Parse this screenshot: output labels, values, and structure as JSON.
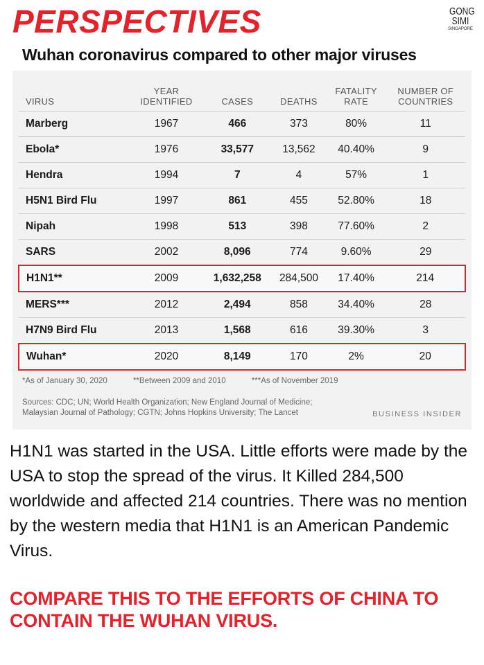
{
  "header": {
    "title": "PERSPECTIVES",
    "logo_line1": "GONG",
    "logo_line2": "SIMI",
    "logo_line3": "SINGAPORE"
  },
  "chart": {
    "subtitle": "Wuhan coronavirus compared to other major viruses",
    "notes": [
      "*As of January 30, 2020",
      "**Between 2009 and 2010",
      "***As of November 2019"
    ],
    "sources": "Sources: CDC; UN; World Health Organization; New England Journal of Medicine; Malaysian Journal of Pathology; CGTN; Johns Hopkins University; The Lancet",
    "credit": "BUSINESS INSIDER"
  },
  "chart_data": {
    "type": "table",
    "columns": [
      "VIRUS",
      "YEAR IDENTIFIED",
      "CASES",
      "DEATHS",
      "FATALITY RATE",
      "NUMBER OF COUNTRIES"
    ],
    "rows": [
      [
        "Marberg",
        "1967",
        "466",
        "373",
        "80%",
        "11"
      ],
      [
        "Ebola*",
        "1976",
        "33,577",
        "13,562",
        "40.40%",
        "9"
      ],
      [
        "Hendra",
        "1994",
        "7",
        "4",
        "57%",
        "1"
      ],
      [
        "H5N1 Bird Flu",
        "1997",
        "861",
        "455",
        "52.80%",
        "18"
      ],
      [
        "Nipah",
        "1998",
        "513",
        "398",
        "77.60%",
        "2"
      ],
      [
        "SARS",
        "2002",
        "8,096",
        "774",
        "9.60%",
        "29"
      ],
      [
        "H1N1**",
        "2009",
        "1,632,258",
        "284,500",
        "17.40%",
        "214"
      ],
      [
        "MERS***",
        "2012",
        "2,494",
        "858",
        "34.40%",
        "28"
      ],
      [
        "H7N9 Bird Flu",
        "2013",
        "1,568",
        "616",
        "39.30%",
        "3"
      ],
      [
        "Wuhan*",
        "2020",
        "8,149",
        "170",
        "2%",
        "20"
      ]
    ],
    "highlighted_rows": [
      "H1N1**",
      "Wuhan*"
    ],
    "highlight_color": "#d6272f"
  },
  "body": {
    "paragraph": "H1N1 was started in the USA. Little efforts were made by the USA to stop the spread of the virus. It Killed 284,500 worldwide and affected 214 countries. There was no mention by the western media that H1N1 is an American Pandemic Virus.",
    "callout": "COMPARE THIS TO THE EFFORTS OF CHINA TO CONTAIN THE WUHAN VIRUS."
  },
  "colors": {
    "accent_red": "#e4222b",
    "card_background": "#f2f2f2"
  }
}
